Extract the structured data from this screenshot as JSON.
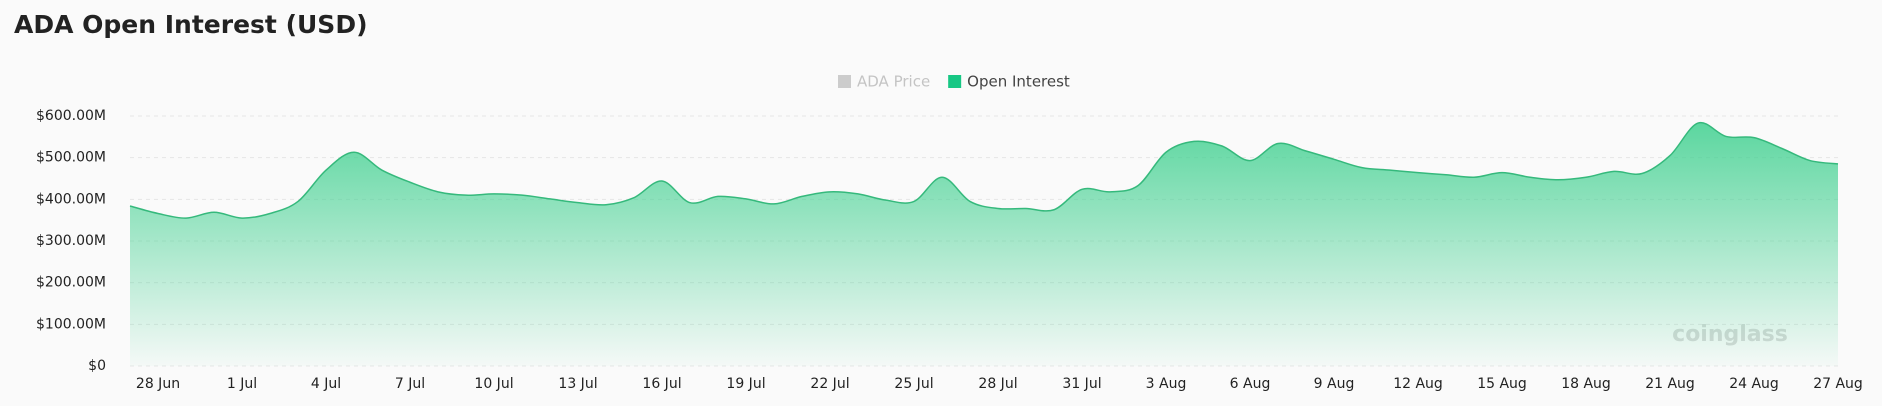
{
  "chart_data": {
    "type": "area",
    "title": "ADA Open Interest (USD)",
    "watermark": "coinglass",
    "categories": [
      null,
      "28 Jun",
      null,
      null,
      "1 Jul",
      null,
      null,
      "4 Jul",
      null,
      null,
      "7 Jul",
      null,
      null,
      "10 Jul",
      null,
      null,
      "13 Jul",
      null,
      null,
      "16 Jul",
      null,
      null,
      "19 Jul",
      null,
      null,
      "22 Jul",
      null,
      null,
      "25 Jul",
      null,
      null,
      "28 Jul",
      null,
      null,
      "31 Jul",
      null,
      null,
      "3 Aug",
      null,
      null,
      "6 Aug",
      null,
      null,
      "9 Aug",
      null,
      null,
      "12 Aug",
      null,
      null,
      "15 Aug",
      null,
      null,
      "18 Aug",
      null,
      null,
      "21 Aug",
      null,
      null,
      "24 Aug",
      null,
      null,
      "27 Aug"
    ],
    "series": [
      {
        "name": "ADA Price",
        "color": "#cccccc",
        "visible": false
      },
      {
        "name": "Open Interest",
        "color": "#17c784",
        "visible": true,
        "values": [
          384000000,
          366000000,
          355000000,
          369000000,
          355000000,
          366000000,
          395000000,
          470000000,
          513000000,
          470000000,
          441000000,
          418000000,
          410000000,
          413000000,
          410000000,
          401000000,
          392000000,
          387000000,
          404000000,
          444000000,
          392000000,
          407000000,
          401000000,
          389000000,
          407000000,
          418000000,
          413000000,
          398000000,
          395000000,
          453000000,
          395000000,
          378000000,
          378000000,
          375000000,
          424000000,
          418000000,
          433000000,
          513000000,
          539000000,
          528000000,
          493000000,
          534000000,
          516000000,
          496000000,
          476000000,
          470000000,
          464000000,
          459000000,
          453000000,
          464000000,
          453000000,
          447000000,
          453000000,
          467000000,
          462000000,
          505000000,
          583000000,
          551000000,
          548000000,
          522000000,
          493000000,
          485000000
        ]
      }
    ],
    "ylim": [
      0,
      600000000
    ],
    "yticks": [
      {
        "value": 0,
        "label": "$0"
      },
      {
        "value": 100000000,
        "label": "$100.00M"
      },
      {
        "value": 200000000,
        "label": "$200.00M"
      },
      {
        "value": 300000000,
        "label": "$300.00M"
      },
      {
        "value": 400000000,
        "label": "$400.00M"
      },
      {
        "value": 500000000,
        "label": "$500.00M"
      },
      {
        "value": 600000000,
        "label": "$600.00M"
      }
    ],
    "grid": true
  }
}
